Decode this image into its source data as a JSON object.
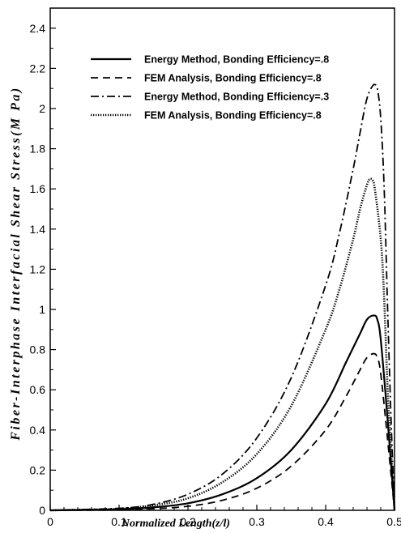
{
  "chart_data": {
    "type": "line",
    "title": "",
    "xlabel": "Normalized Length(z/l)",
    "ylabel": "Fiber-Interphase Interfacial Shear Stress(M Pa)",
    "xlim": [
      0,
      0.5
    ],
    "ylim": [
      0,
      2.5
    ],
    "x_ticks": [
      "0",
      "0.1",
      "0.2",
      "0.3",
      "0.4",
      "0.5"
    ],
    "y_ticks": [
      "0",
      "0.2",
      "0.4",
      "0.6",
      "0.8",
      "1",
      "1.2",
      "1.4",
      "1.6",
      "1.8",
      "2",
      "2.2",
      "2.4"
    ],
    "grid": false,
    "legend_position": "top-right",
    "series": [
      {
        "name": "Energy Method, Bonding Efficiency=.8",
        "style": "solid",
        "color": "#000000",
        "x": [
          0,
          0.1,
          0.15,
          0.2,
          0.25,
          0.3,
          0.35,
          0.4,
          0.43,
          0.45,
          0.46,
          0.47,
          0.475,
          0.48,
          0.49,
          0.5
        ],
        "y": [
          0,
          0.005,
          0.015,
          0.035,
          0.08,
          0.16,
          0.3,
          0.53,
          0.74,
          0.88,
          0.95,
          0.97,
          0.95,
          0.85,
          0.45,
          0
        ]
      },
      {
        "name": "FEM Analysis, Bonding Efficiency=.8",
        "style": "dashed",
        "color": "#000000",
        "x": [
          0,
          0.1,
          0.15,
          0.2,
          0.25,
          0.3,
          0.35,
          0.4,
          0.43,
          0.45,
          0.46,
          0.47,
          0.475,
          0.48,
          0.49,
          0.5
        ],
        "y": [
          0,
          0.002,
          0.008,
          0.02,
          0.05,
          0.11,
          0.22,
          0.4,
          0.57,
          0.7,
          0.76,
          0.78,
          0.76,
          0.68,
          0.35,
          0
        ]
      },
      {
        "name": "Energy Method, Bonding Efficiency=.3",
        "style": "dashdot",
        "color": "#000000",
        "x": [
          0,
          0.1,
          0.15,
          0.2,
          0.25,
          0.3,
          0.35,
          0.4,
          0.42,
          0.44,
          0.45,
          0.46,
          0.47,
          0.475,
          0.48,
          0.485,
          0.49,
          0.495,
          0.5
        ],
        "y": [
          0,
          0.01,
          0.03,
          0.08,
          0.18,
          0.36,
          0.66,
          1.12,
          1.38,
          1.7,
          1.88,
          2.05,
          2.12,
          2.1,
          1.95,
          1.6,
          1.0,
          0.45,
          0
        ]
      },
      {
        "name": "FEM Analysis, Bonding Efficiency=.8",
        "style": "dotted",
        "color": "#000000",
        "x": [
          0,
          0.1,
          0.15,
          0.2,
          0.25,
          0.3,
          0.35,
          0.4,
          0.42,
          0.44,
          0.45,
          0.46,
          0.465,
          0.47,
          0.48,
          0.485,
          0.49,
          0.495,
          0.5
        ],
        "y": [
          0,
          0.008,
          0.025,
          0.06,
          0.14,
          0.28,
          0.52,
          0.9,
          1.1,
          1.35,
          1.5,
          1.62,
          1.65,
          1.63,
          1.35,
          1.05,
          0.6,
          0.3,
          0
        ]
      }
    ]
  }
}
